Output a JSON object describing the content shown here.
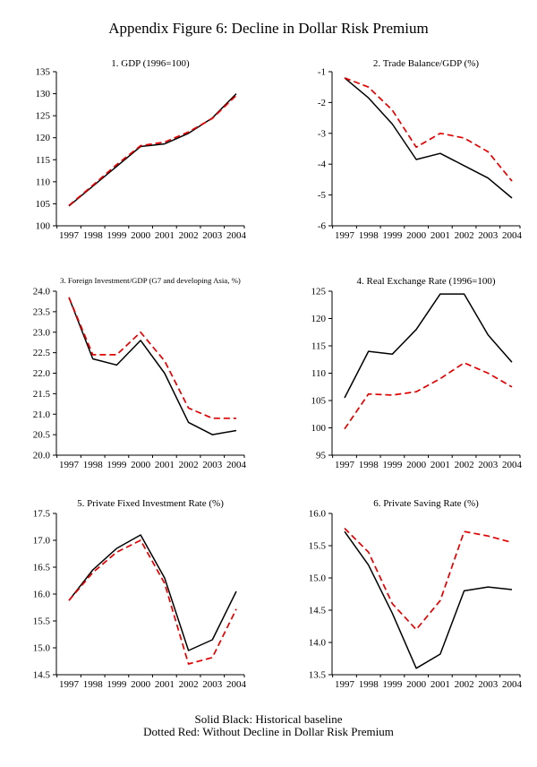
{
  "page": {
    "title": "Appendix Figure 6: Decline in Dollar Risk Premium",
    "footer_line1": "Solid Black: Historical baseline",
    "footer_line2": "Dotted Red: Without Decline in Dollar Risk Premium"
  },
  "legend": {
    "solid_label": "Historical baseline",
    "solid_color": "#000000",
    "dotted_label": "Without Decline in Dollar Risk Premium",
    "dotted_color": "#e50000"
  },
  "chart_data": [
    {
      "type": "line",
      "title": "1. GDP (1996=100)",
      "categories": [
        1997,
        1998,
        1999,
        2000,
        2001,
        2002,
        2003,
        2004
      ],
      "ylim": [
        100,
        135
      ],
      "ytick_step": 5,
      "decimals": 0,
      "grid": false,
      "legend_position": "none",
      "series": [
        {
          "name": "Historical baseline",
          "style": "solid",
          "color": "#000000",
          "values": [
            104.5,
            109.0,
            113.5,
            118.0,
            118.6,
            121.0,
            124.5,
            130.0
          ]
        },
        {
          "name": "Without Decline in Dollar Risk Premium",
          "style": "dashed",
          "color": "#e50000",
          "values": [
            104.6,
            109.2,
            113.9,
            118.2,
            119.0,
            121.3,
            124.4,
            129.6
          ]
        }
      ]
    },
    {
      "type": "line",
      "title": "2. Trade Balance/GDP (%)",
      "categories": [
        1997,
        1998,
        1999,
        2000,
        2001,
        2002,
        2003,
        2004
      ],
      "ylim": [
        -6,
        -1
      ],
      "ytick_step": 1,
      "decimals": 0,
      "grid": false,
      "legend_position": "none",
      "series": [
        {
          "name": "Historical baseline",
          "style": "solid",
          "color": "#000000",
          "values": [
            -1.2,
            -1.85,
            -2.7,
            -3.85,
            -3.65,
            -4.05,
            -4.45,
            -5.1
          ]
        },
        {
          "name": "Without Decline in Dollar Risk Premium",
          "style": "dashed",
          "color": "#e50000",
          "values": [
            -1.2,
            -1.5,
            -2.25,
            -3.45,
            -3.0,
            -3.15,
            -3.6,
            -4.55
          ]
        }
      ]
    },
    {
      "type": "line",
      "title": "3. Foreign Investment/GDP (G7 and developing Asia, %)",
      "categories": [
        1997,
        1998,
        1999,
        2000,
        2001,
        2002,
        2003,
        2004
      ],
      "ylim": [
        20.0,
        24.0
      ],
      "ytick_step": 0.5,
      "decimals": 1,
      "grid": false,
      "legend_position": "none",
      "series": [
        {
          "name": "Historical baseline",
          "style": "solid",
          "color": "#000000",
          "values": [
            23.85,
            22.35,
            22.2,
            22.8,
            22.0,
            20.8,
            20.5,
            20.6
          ]
        },
        {
          "name": "Without Decline in Dollar Risk Premium",
          "style": "dashed",
          "color": "#e50000",
          "values": [
            23.85,
            22.45,
            22.45,
            23.0,
            22.3,
            21.15,
            20.9,
            20.9
          ]
        }
      ]
    },
    {
      "type": "line",
      "title": "4. Real Exchange Rate (1996=100)",
      "categories": [
        1997,
        1998,
        1999,
        2000,
        2001,
        2002,
        2003,
        2004
      ],
      "ylim": [
        95,
        125
      ],
      "ytick_step": 5,
      "decimals": 0,
      "grid": false,
      "legend_position": "none",
      "series": [
        {
          "name": "Historical baseline",
          "style": "solid",
          "color": "#000000",
          "values": [
            105.5,
            114.0,
            113.5,
            118.0,
            124.5,
            124.5,
            117.0,
            112.0
          ]
        },
        {
          "name": "Without Decline in Dollar Risk Premium",
          "style": "dashed",
          "color": "#e50000",
          "values": [
            99.8,
            106.2,
            106.0,
            106.6,
            109.0,
            111.9,
            110.0,
            107.5
          ]
        }
      ]
    },
    {
      "type": "line",
      "title": "5. Private Fixed Investment Rate (%)",
      "categories": [
        1997,
        1998,
        1999,
        2000,
        2001,
        2002,
        2003,
        2004
      ],
      "ylim": [
        14.5,
        17.5
      ],
      "ytick_step": 0.5,
      "decimals": 1,
      "grid": false,
      "legend_position": "none",
      "series": [
        {
          "name": "Historical baseline",
          "style": "solid",
          "color": "#000000",
          "values": [
            15.88,
            16.45,
            16.85,
            17.1,
            16.3,
            14.95,
            15.15,
            16.05
          ]
        },
        {
          "name": "Without Decline in Dollar Risk Premium",
          "style": "dashed",
          "color": "#e50000",
          "values": [
            15.88,
            16.4,
            16.78,
            17.0,
            16.2,
            14.7,
            14.82,
            15.72
          ]
        }
      ]
    },
    {
      "type": "line",
      "title": "6. Private Saving Rate (%)",
      "categories": [
        1997,
        1998,
        1999,
        2000,
        2001,
        2002,
        2003,
        2004
      ],
      "ylim": [
        13.5,
        16.0
      ],
      "ytick_step": 0.5,
      "decimals": 1,
      "grid": false,
      "legend_position": "none",
      "series": [
        {
          "name": "Historical baseline",
          "style": "solid",
          "color": "#000000",
          "values": [
            15.72,
            15.2,
            14.45,
            13.6,
            13.82,
            14.8,
            14.86,
            14.82
          ]
        },
        {
          "name": "Without Decline in Dollar Risk Premium",
          "style": "dashed",
          "color": "#e50000",
          "values": [
            15.77,
            15.4,
            14.6,
            14.2,
            14.65,
            15.72,
            15.65,
            15.55
          ]
        }
      ]
    }
  ]
}
